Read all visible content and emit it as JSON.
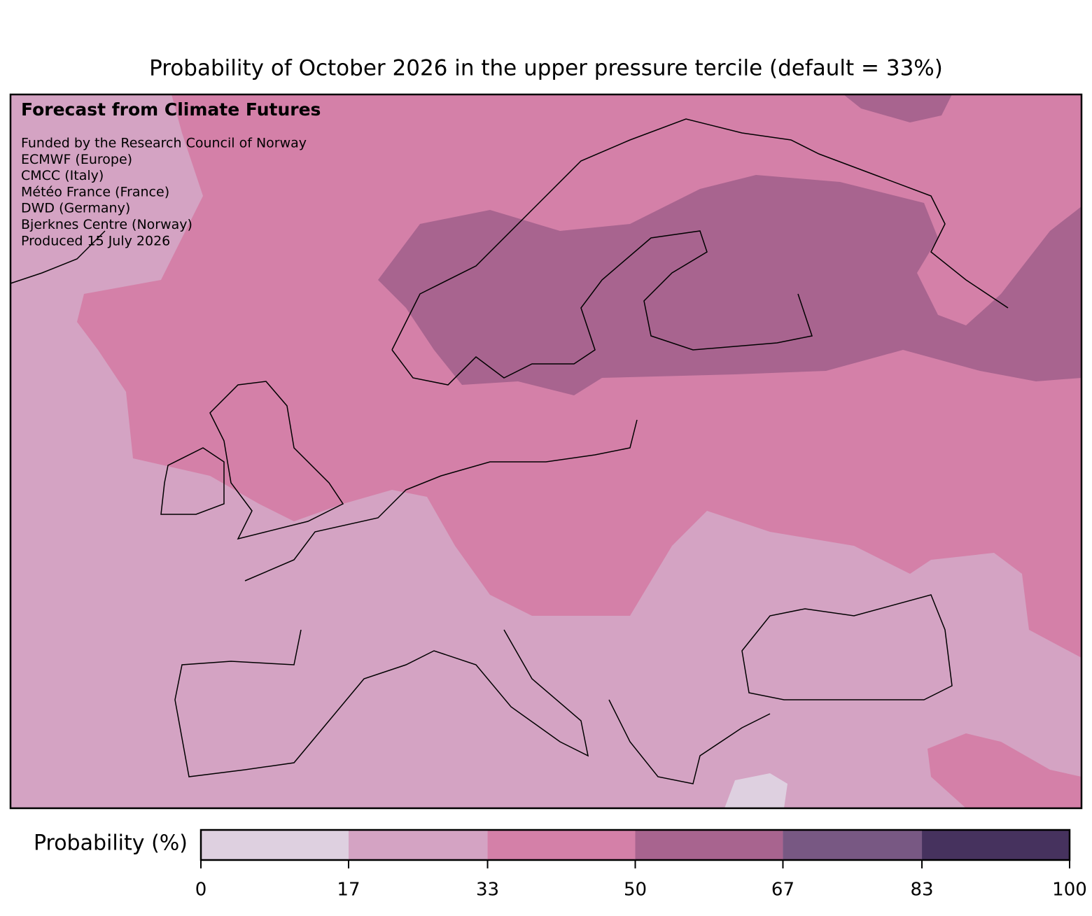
{
  "title": "Probability of October 2026 in the upper pressure tercile (default = 33%)",
  "annotation": {
    "heading": "Forecast from Climate Futures",
    "lines": [
      "Funded by the Research Council of Norway",
      "ECMWF (Europe)",
      "CMCC (Italy)",
      "Météo France (France)",
      "DWD (Germany)",
      "Bjerknes Centre (Norway)",
      "Produced 15 July 2026"
    ]
  },
  "colorbar": {
    "label": "Probability (%)",
    "lim": [
      0,
      100
    ],
    "ticks": [
      0,
      17,
      33,
      50,
      67,
      83,
      100
    ],
    "colors": [
      "#ded0e0",
      "#d4a3c3",
      "#d480a8",
      "#a8648f",
      "#785883",
      "#46325e"
    ]
  }
}
